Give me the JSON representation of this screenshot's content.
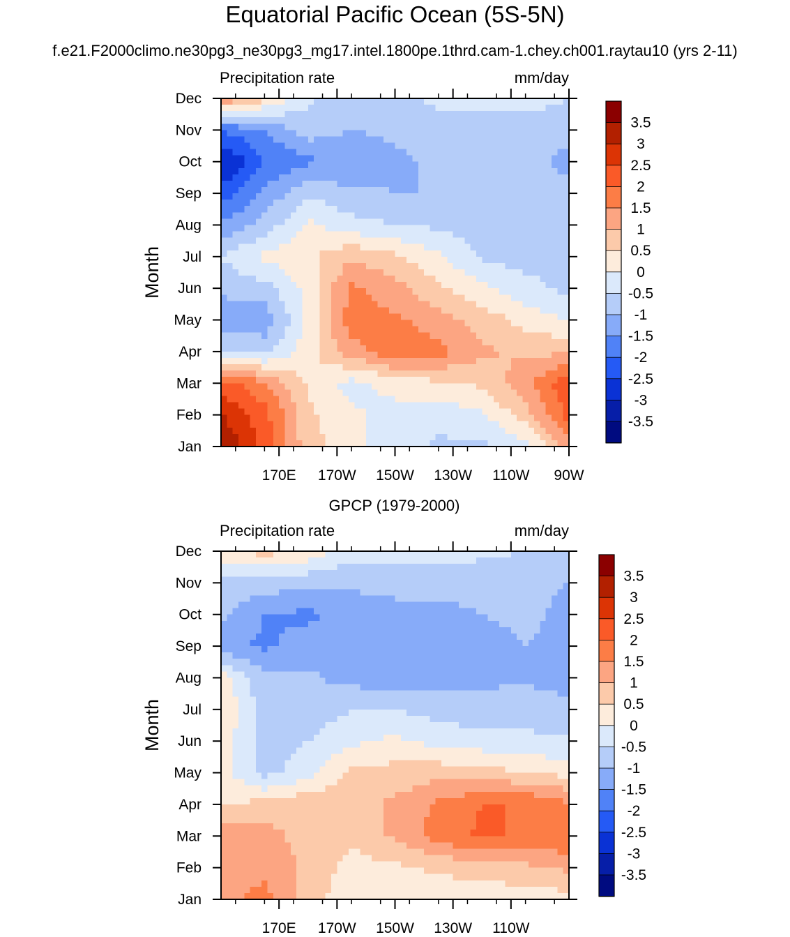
{
  "title": "Equatorial Pacific Ocean (5S-5N)",
  "case_name": "f.e21.F2000climo.ne30pg3_ne30pg3_mg17.intel.1800pe.1thrd.cam-1.chey.ch001.raytau10 (yrs 2-11)",
  "colorbar": {
    "labels": [
      "3.5",
      "3",
      "2.5",
      "2",
      "1.5",
      "1",
      "0.5",
      "0",
      "-0.5",
      "-1",
      "-1.5",
      "-2",
      "-2.5",
      "-3",
      "-3.5"
    ],
    "colors": [
      "#8b0000",
      "#b22000",
      "#dc3405",
      "#fa5a28",
      "#fc7d46",
      "#fca582",
      "#fccaaa",
      "#fdecdc",
      "#dbe9fb",
      "#b5cdf9",
      "#87abf9",
      "#5082f7",
      "#255af5",
      "#0a32d5",
      "#061ea8",
      "#000b80"
    ]
  },
  "chart_data": [
    {
      "type": "heatmap",
      "panel_title": "",
      "left_subtitle": "Precipitation rate",
      "right_subtitle": "mm/day",
      "xlabel": "",
      "ylabel": "Month",
      "x_ticks": [
        "170E",
        "170W",
        "150W",
        "130W",
        "110W",
        "90W"
      ],
      "y_ticks": [
        "Jan",
        "Feb",
        "Mar",
        "Apr",
        "May",
        "Jun",
        "Jul",
        "Aug",
        "Sep",
        "Oct",
        "Nov",
        "Dec"
      ],
      "xlim": [
        150,
        270
      ],
      "levels": [
        -3.5,
        -3,
        -2.5,
        -2,
        -1.5,
        -1,
        -0.5,
        0,
        0.5,
        1,
        1.5,
        2,
        2.5,
        3,
        3.5
      ],
      "lon": [
        150,
        165,
        180,
        195,
        210,
        225,
        240,
        255,
        270
      ],
      "months": [
        "Jan",
        "Feb",
        "Mar",
        "Apr",
        "May",
        "Jun",
        "Jul",
        "Aug",
        "Sep",
        "Oct",
        "Nov",
        "Dec"
      ],
      "z": [
        [
          3.6,
          2.3,
          0.7,
          0.2,
          -0.3,
          -0.6,
          -0.6,
          -0.2,
          1.3
        ],
        [
          3.0,
          2.2,
          0.6,
          0.1,
          -0.2,
          -0.3,
          -0.1,
          0.8,
          2.2
        ],
        [
          2.3,
          1.6,
          0.4,
          -0.2,
          0.2,
          0.4,
          0.6,
          1.3,
          2.4
        ],
        [
          -0.4,
          -0.7,
          0.3,
          1.3,
          1.9,
          1.7,
          1.1,
          0.9,
          0.9
        ],
        [
          -1.5,
          -1.3,
          0.1,
          1.8,
          1.6,
          1.2,
          0.8,
          0.3,
          0.0
        ],
        [
          -0.8,
          -0.7,
          0.2,
          1.6,
          1.2,
          0.6,
          0.1,
          -0.3,
          -0.7
        ],
        [
          -0.5,
          0.1,
          0.4,
          0.9,
          0.6,
          0.1,
          -0.6,
          -0.7,
          -0.7
        ],
        [
          -1.4,
          -0.8,
          0.1,
          -0.3,
          -0.5,
          -0.6,
          -0.7,
          -0.8,
          -0.9
        ],
        [
          -2.3,
          -1.4,
          -0.6,
          -0.9,
          -1.0,
          -1.0,
          -0.9,
          -0.9,
          -0.9
        ],
        [
          -3.1,
          -2.0,
          -1.6,
          -1.4,
          -1.1,
          -0.9,
          -0.9,
          -0.9,
          -1.1
        ],
        [
          -2.0,
          -1.5,
          -0.7,
          -1.0,
          -0.9,
          -0.7,
          -0.7,
          -0.7,
          -0.9
        ],
        [
          1.6,
          0.6,
          -0.4,
          -0.8,
          -0.6,
          -0.4,
          -0.3,
          -0.3,
          -0.5
        ]
      ]
    },
    {
      "type": "heatmap",
      "panel_title": "GPCP (1979-2000)",
      "left_subtitle": "Precipitation rate",
      "right_subtitle": "mm/day",
      "xlabel": "",
      "ylabel": "Month",
      "x_ticks": [
        "170E",
        "170W",
        "150W",
        "130W",
        "110W"
      ],
      "y_ticks": [
        "Jan",
        "Feb",
        "Mar",
        "Apr",
        "May",
        "Jun",
        "Jul",
        "Aug",
        "Sep",
        "Oct",
        "Nov",
        "Dec"
      ],
      "xlim": [
        150,
        270
      ],
      "levels": [
        -3.5,
        -3,
        -2.5,
        -2,
        -1.5,
        -1,
        -0.5,
        0,
        0.5,
        1,
        1.5,
        2,
        2.5,
        3,
        3.5
      ],
      "lon": [
        150,
        165,
        180,
        195,
        210,
        225,
        240,
        255,
        270
      ],
      "months": [
        "Jan",
        "Feb",
        "Mar",
        "Apr",
        "May",
        "Jun",
        "Jul",
        "Aug",
        "Sep",
        "Oct",
        "Nov",
        "Dec"
      ],
      "z": [
        [
          1.3,
          1.7,
          0.7,
          0.2,
          0.2,
          0.1,
          0.1,
          0.2,
          0.3
        ],
        [
          1.4,
          1.3,
          0.9,
          0.3,
          0.4,
          0.6,
          0.8,
          0.9,
          1.1
        ],
        [
          1.4,
          1.2,
          0.8,
          0.6,
          1.1,
          1.7,
          2.1,
          1.9,
          2.0
        ],
        [
          0.4,
          0.7,
          0.9,
          0.8,
          1.1,
          1.6,
          2.0,
          2.0,
          1.6
        ],
        [
          0.2,
          -0.7,
          -0.2,
          0.6,
          0.7,
          0.8,
          0.7,
          0.5,
          0.3
        ],
        [
          0.3,
          -0.7,
          -0.5,
          -0.1,
          0.1,
          -0.2,
          -0.3,
          -0.4,
          -0.4
        ],
        [
          0.5,
          -0.8,
          -0.8,
          -0.5,
          -0.5,
          -0.7,
          -0.8,
          -0.7,
          -0.9
        ],
        [
          0.3,
          -0.9,
          -0.9,
          -1.2,
          -1.3,
          -1.2,
          -1.1,
          -1.1,
          -1.2
        ],
        [
          -1.4,
          -1.6,
          -1.3,
          -1.4,
          -1.5,
          -1.4,
          -1.4,
          -1.0,
          -1.3
        ],
        [
          -0.9,
          -1.5,
          -1.6,
          -1.3,
          -1.3,
          -1.2,
          -1.0,
          -0.8,
          -1.2
        ],
        [
          -0.6,
          -0.7,
          -0.9,
          -0.9,
          -0.7,
          -0.7,
          -0.8,
          -0.9,
          -1.0
        ],
        [
          0.3,
          0.7,
          0.4,
          -0.3,
          -0.4,
          -0.3,
          -0.4,
          -0.5,
          -0.7
        ]
      ]
    }
  ]
}
